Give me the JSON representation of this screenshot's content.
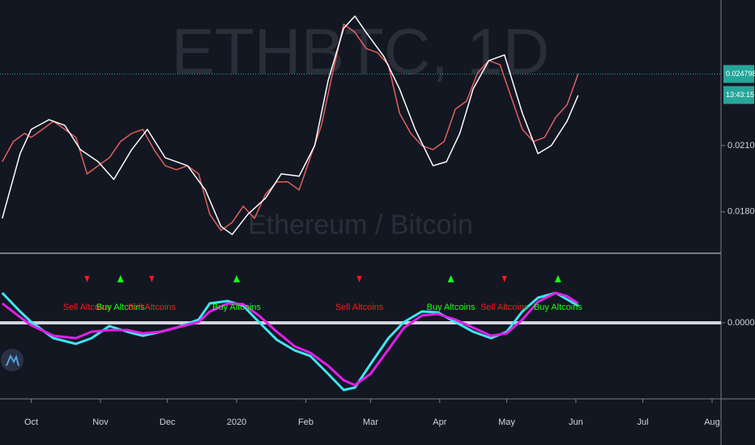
{
  "chart_data": [
    {
      "type": "line",
      "watermark": "ETHBTC, 1D",
      "subtitle": "Ethereum / Bitcoin",
      "log_scale": true,
      "ylim": [
        0.01638,
        0.02945
      ],
      "yticks": [
        {
          "value": 0.018,
          "label": "0.018000"
        },
        {
          "value": 0.021,
          "label": "0.021000"
        }
      ],
      "xlim": [
        -14,
        309
      ],
      "xticks": [
        {
          "value": 0,
          "label": "Oct"
        },
        {
          "value": 31,
          "label": "Nov"
        },
        {
          "value": 61,
          "label": "Dec"
        },
        {
          "value": 92,
          "label": "2020"
        },
        {
          "value": 123,
          "label": "Feb"
        },
        {
          "value": 152,
          "label": "Mar"
        },
        {
          "value": 183,
          "label": "Apr"
        },
        {
          "value": 213,
          "label": "May"
        },
        {
          "value": 244,
          "label": "Jun"
        },
        {
          "value": 274,
          "label": "Jul"
        },
        {
          "value": 305,
          "label": "Aug"
        }
      ],
      "last_price": {
        "value": 0.024798,
        "label": "0.024798"
      },
      "countdown": "13:43:15",
      "series": [
        {
          "color": "#e0605e",
          "x": [
            -13,
            -8,
            -3,
            0,
            5,
            10,
            15,
            20,
            25,
            30,
            35,
            40,
            45,
            50,
            55,
            60,
            65,
            70,
            75,
            80,
            85,
            90,
            95,
            100,
            105,
            110,
            115,
            120,
            125,
            130,
            135,
            140,
            145,
            150,
            155,
            160,
            165,
            170,
            175,
            180,
            185,
            190,
            195,
            200,
            205,
            210,
            215,
            220,
            225,
            230,
            235,
            240,
            245
          ],
          "values": [
            0.020225,
            0.021198,
            0.021601,
            0.021399,
            0.021804,
            0.022218,
            0.021804,
            0.021399,
            0.019662,
            0.020036,
            0.020416,
            0.021198,
            0.021601,
            0.021804,
            0.020803,
            0.020036,
            0.019849,
            0.020036,
            0.019662,
            0.017898,
            0.017239,
            0.017564,
            0.018239,
            0.01773,
            0.01876,
            0.019297,
            0.019297,
            0.018938,
            0.020416,
            0.02201,
            0.024872,
            0.027842,
            0.027323,
            0.026315,
            0.026069,
            0.025343,
            0.02264,
            0.021601,
            0.021,
            0.020803,
            0.021198,
            0.022854,
            0.023287,
            0.024872,
            0.025582,
            0.025343,
            0.023507,
            0.021804,
            0.021198,
            0.021399,
            0.022428,
            0.023071,
            0.024798
          ]
        },
        {
          "color": "#ffffff",
          "x": [
            -13,
            -5,
            0,
            8,
            15,
            22,
            30,
            37,
            45,
            52,
            60,
            70,
            78,
            85,
            90,
            97,
            105,
            112,
            120,
            127,
            133,
            140,
            145,
            150,
            158,
            165,
            172,
            180,
            186,
            192,
            198,
            205,
            212,
            220,
            227,
            233,
            240,
            245
          ],
          "values": [
            0.01773,
            0.020609,
            0.021804,
            0.022302,
            0.02201,
            0.020803,
            0.020225,
            0.019406,
            0.020803,
            0.021804,
            0.020416,
            0.020036,
            0.018938,
            0.017401,
            0.017077,
            0.017898,
            0.018585,
            0.019662,
            0.019553,
            0.021,
            0.024408,
            0.027581,
            0.028369,
            0.027323,
            0.025824,
            0.023955,
            0.021804,
            0.020036,
            0.020225,
            0.021601,
            0.023955,
            0.025582,
            0.025922,
            0.02264,
            0.020609,
            0.021,
            0.022218,
            0.023598
          ]
        }
      ]
    },
    {
      "type": "line",
      "ylim": [
        -0.93,
        0.84
      ],
      "yticks": [
        {
          "value": 0,
          "label": "0.000000"
        }
      ],
      "xlim": [
        -14,
        309
      ],
      "series": [
        {
          "color": "#3fe6f0",
          "x": [
            -13,
            -5,
            0,
            10,
            20,
            27,
            35,
            43,
            50,
            58,
            65,
            75,
            80,
            88,
            95,
            102,
            110,
            118,
            125,
            133,
            140,
            145,
            152,
            160,
            167,
            175,
            182,
            190,
            198,
            206,
            213,
            220,
            227,
            235,
            240,
            245
          ],
          "values": [
            0.37,
            0.14,
            0.01,
            -0.19,
            -0.26,
            -0.19,
            -0.04,
            -0.11,
            -0.16,
            -0.11,
            -0.06,
            0.04,
            0.24,
            0.27,
            0.21,
            0.01,
            -0.21,
            -0.34,
            -0.41,
            -0.63,
            -0.83,
            -0.8,
            -0.51,
            -0.19,
            0.01,
            0.14,
            0.13,
            0.01,
            -0.11,
            -0.19,
            -0.11,
            0.14,
            0.31,
            0.37,
            0.29,
            0.21
          ]
        },
        {
          "color": "#e020e8",
          "x": [
            -13,
            -5,
            0,
            10,
            20,
            27,
            35,
            43,
            50,
            58,
            65,
            75,
            80,
            88,
            95,
            102,
            110,
            118,
            125,
            133,
            140,
            145,
            152,
            160,
            167,
            175,
            182,
            190,
            198,
            206,
            213,
            220,
            227,
            235,
            240,
            245
          ],
          "values": [
            0.24,
            0.07,
            -0.03,
            -0.16,
            -0.19,
            -0.11,
            -0.09,
            -0.09,
            -0.13,
            -0.11,
            -0.06,
            0.01,
            0.14,
            0.24,
            0.23,
            0.09,
            -0.11,
            -0.29,
            -0.37,
            -0.53,
            -0.71,
            -0.77,
            -0.63,
            -0.33,
            -0.06,
            0.09,
            0.11,
            0.04,
            -0.06,
            -0.16,
            -0.13,
            0.04,
            0.26,
            0.37,
            0.33,
            0.24
          ]
        }
      ],
      "signals": [
        {
          "x": 25,
          "label": "Sell Altcoins",
          "color": "#ff1a1a"
        },
        {
          "x": 40,
          "label": "Buy Altcoins",
          "color": "#1aff1a"
        },
        {
          "x": 54,
          "label": "Sell Altcoins",
          "color": "#ff1a1a"
        },
        {
          "x": 92,
          "label": "Buy Altcoins",
          "color": "#1aff1a"
        },
        {
          "x": 147,
          "label": "Sell Altcoins",
          "color": "#ff1a1a"
        },
        {
          "x": 188,
          "label": "Buy Altcoins",
          "color": "#1aff1a"
        },
        {
          "x": 212,
          "label": "Sell Altcoins",
          "color": "#ff1a1a"
        },
        {
          "x": 236,
          "label": "Buy Altcoins",
          "color": "#1aff1a"
        }
      ]
    }
  ]
}
